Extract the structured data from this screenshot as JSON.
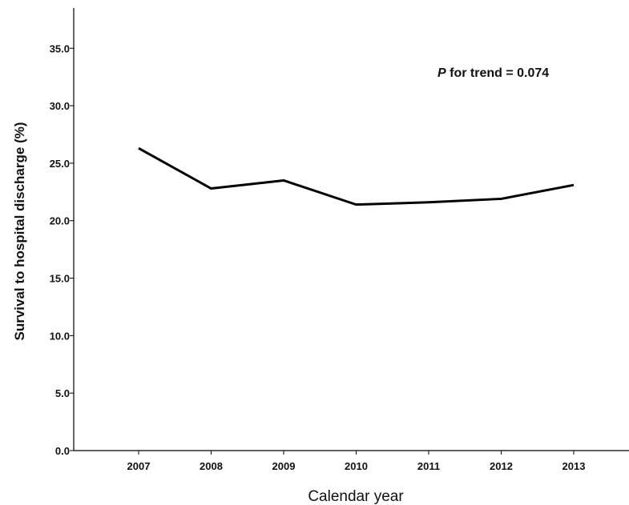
{
  "chart_data": {
    "type": "line",
    "xlabel": "Calendar year",
    "ylabel": "Survival to hospital discharge (%)",
    "categories": [
      "2007",
      "2008",
      "2009",
      "2010",
      "2011",
      "2012",
      "2013"
    ],
    "series": [
      {
        "values": [
          26.3,
          22.8,
          23.5,
          21.4,
          21.6,
          21.9,
          23.1
        ]
      }
    ],
    "ylim": [
      0,
      38.5
    ],
    "yticks": [
      "0.0",
      "5.0",
      "10.0",
      "15.0",
      "20.0",
      "25.0",
      "30.0",
      "35.0"
    ],
    "annotation": {
      "italic": "P",
      "text": " for trend = 0.074"
    },
    "grid": false,
    "line_color": "#000000"
  }
}
